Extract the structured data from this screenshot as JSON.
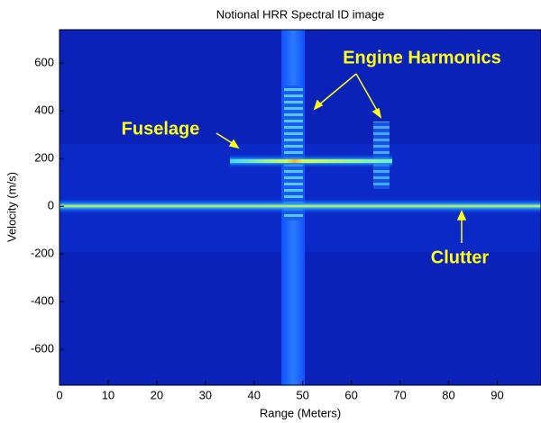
{
  "chart_data": {
    "type": "heatmap",
    "title": "Notional HRR Spectral ID image",
    "x_label": "Range (Meters)",
    "y_label": "Velocity (m/s)",
    "xlim": [
      0,
      99
    ],
    "ylim": [
      -750,
      740
    ],
    "xticks": [
      0,
      10,
      20,
      30,
      40,
      50,
      60,
      70,
      80,
      90
    ],
    "yticks": [
      -600,
      -400,
      -200,
      0,
      200,
      400,
      600
    ],
    "annotations": [
      "Fuselage",
      "Engine Harmonics",
      "Clutter"
    ]
  }
}
